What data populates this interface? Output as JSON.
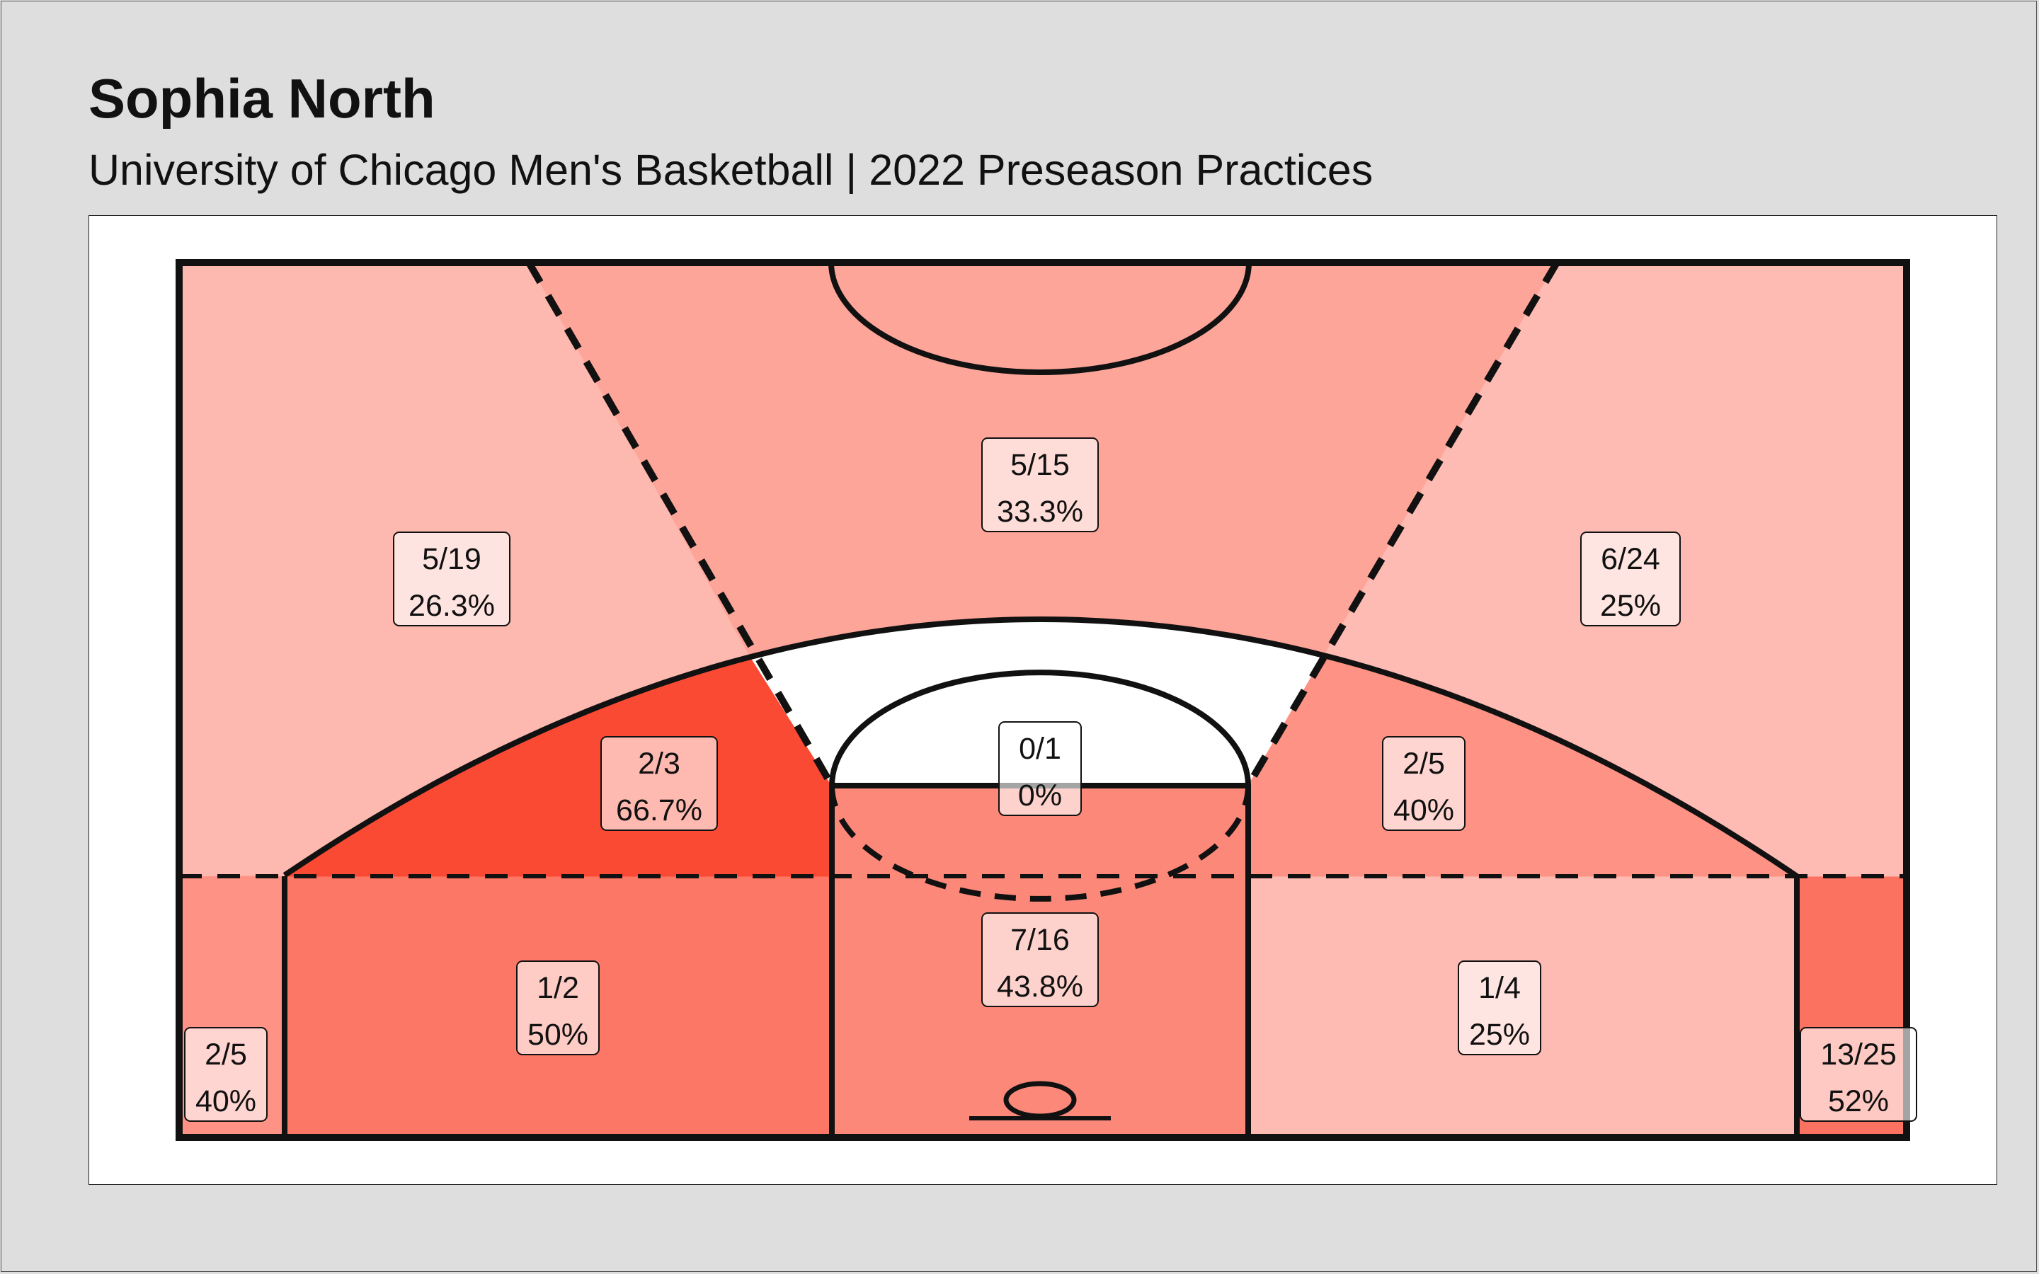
{
  "header": {
    "title": "Sophia North",
    "subtitle": "University of Chicago Men's Basketball | 2022 Preseason Practices"
  },
  "chart_data": {
    "type": "heatmap",
    "description_of_encoding": "shot zones shaded by field goal percentage",
    "zones": [
      {
        "zone": "left-corner-three",
        "made": 2,
        "attempted": 5,
        "fraction": "2/5",
        "percent": "40%",
        "value": 40.0
      },
      {
        "zone": "left-baseline-midrange",
        "made": 1,
        "attempted": 2,
        "fraction": "1/2",
        "percent": "50%",
        "value": 50.0
      },
      {
        "zone": "paint",
        "made": 7,
        "attempted": 16,
        "fraction": "7/16",
        "percent": "43.8%",
        "value": 43.8
      },
      {
        "zone": "right-baseline-midrange",
        "made": 1,
        "attempted": 4,
        "fraction": "1/4",
        "percent": "25%",
        "value": 25.0
      },
      {
        "zone": "right-corner-three",
        "made": 13,
        "attempted": 25,
        "fraction": "13/25",
        "percent": "52%",
        "value": 52.0
      },
      {
        "zone": "left-wing-midrange",
        "made": 2,
        "attempted": 3,
        "fraction": "2/3",
        "percent": "66.7%",
        "value": 66.7
      },
      {
        "zone": "top-key-midrange",
        "made": 0,
        "attempted": 1,
        "fraction": "0/1",
        "percent": "0%",
        "value": 0.0
      },
      {
        "zone": "right-wing-midrange",
        "made": 2,
        "attempted": 5,
        "fraction": "2/5",
        "percent": "40%",
        "value": 40.0
      },
      {
        "zone": "left-wing-three",
        "made": 5,
        "attempted": 19,
        "fraction": "5/19",
        "percent": "26.3%",
        "value": 26.3
      },
      {
        "zone": "top-three",
        "made": 5,
        "attempted": 15,
        "fraction": "5/15",
        "percent": "33.3%",
        "value": 33.3
      },
      {
        "zone": "right-wing-three",
        "made": 6,
        "attempted": 24,
        "fraction": "6/24",
        "percent": "25%",
        "value": 25.0
      }
    ],
    "colors": {
      "min": "#ffffff",
      "max": "#fb4a33",
      "lines": "#111111"
    }
  }
}
